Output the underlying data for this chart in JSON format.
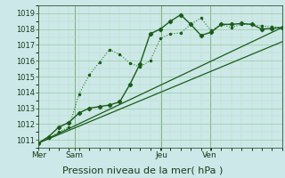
{
  "background_color": "#cce8e8",
  "plot_bg_color": "#cce8e8",
  "grid_major_color": "#99cc99",
  "grid_minor_color": "#bbddbb",
  "line_color_dark": "#1a5c1a",
  "line_color_mid": "#2d7a2d",
  "ylim": [
    1010.5,
    1019.5
  ],
  "yticks": [
    1011,
    1012,
    1013,
    1014,
    1015,
    1016,
    1017,
    1018,
    1019
  ],
  "xlabel": "Pression niveau de la mer( hPa )",
  "xlabel_fontsize": 8,
  "day_labels": [
    "Mer",
    "Sam",
    "Jeu",
    "Ven"
  ],
  "n_points": 25,
  "xlim": [
    0,
    24
  ],
  "series_dotted_x": [
    0,
    1,
    2,
    3,
    4,
    5,
    6,
    7,
    8,
    9,
    10,
    11,
    12,
    13,
    14,
    15,
    16,
    17,
    18,
    19,
    20,
    21,
    22,
    23,
    24
  ],
  "series_dotted_y": [
    1010.8,
    1011.1,
    1011.5,
    1011.8,
    1013.9,
    1015.1,
    1015.9,
    1016.7,
    1016.4,
    1015.85,
    1015.6,
    1016.0,
    1017.4,
    1017.7,
    1017.75,
    1018.3,
    1018.7,
    1017.9,
    1018.3,
    1018.1,
    1018.3,
    1018.3,
    1018.2,
    1018.15,
    1018.1
  ],
  "series_solid_x": [
    0,
    1,
    2,
    3,
    4,
    5,
    6,
    7,
    8,
    9,
    10,
    11,
    12,
    13,
    14,
    15,
    16,
    17,
    18,
    19,
    20,
    21,
    22,
    23,
    24
  ],
  "series_solid_y": [
    1010.8,
    1011.2,
    1011.8,
    1012.1,
    1012.7,
    1013.0,
    1013.1,
    1013.2,
    1013.4,
    1014.5,
    1015.8,
    1017.7,
    1018.0,
    1018.5,
    1018.9,
    1018.3,
    1017.6,
    1017.8,
    1018.3,
    1018.3,
    1018.35,
    1018.3,
    1018.0,
    1018.05,
    1018.1
  ],
  "trend1_x": [
    0,
    24
  ],
  "trend1_y": [
    1010.8,
    1018.1
  ],
  "trend2_x": [
    0,
    24
  ],
  "trend2_y": [
    1010.8,
    1017.2
  ],
  "vline_positions": [
    0,
    3.55,
    12.1,
    16.87
  ]
}
